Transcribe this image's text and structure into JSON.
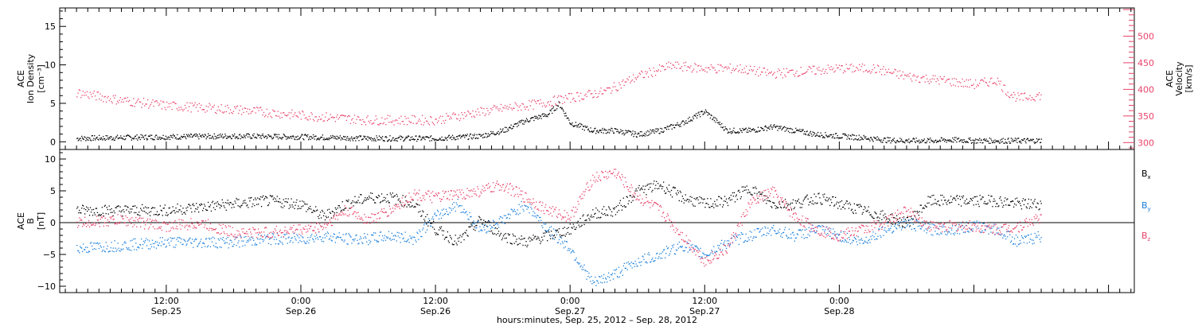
{
  "chart_data": [
    {
      "type": "scatter",
      "panel": "top",
      "left_axis": {
        "label_lines": [
          "ACE",
          "Ion Density",
          "[cm⁻³]"
        ],
        "range": [
          -1,
          17.4
        ],
        "ticks": [
          0,
          5,
          10,
          15
        ],
        "tick_labels": [
          "0",
          "5",
          "10",
          "15"
        ]
      },
      "right_axis": {
        "label_lines": [
          "ACE",
          "Velocity",
          "[km/s]"
        ],
        "range": [
          287,
          553
        ],
        "ticks": [
          300,
          350,
          400,
          450,
          500
        ],
        "tick_labels": [
          "300",
          "350",
          "400",
          "450",
          "500"
        ],
        "color": "#e8436a"
      },
      "series": [
        {
          "axis": "left",
          "color": "#000000",
          "t": [
            -8,
            0,
            6,
            12,
            18,
            24,
            28,
            30,
            32,
            34,
            35,
            36,
            38,
            40,
            42,
            44,
            46,
            48,
            50,
            52,
            54,
            56,
            58,
            60,
            62,
            64,
            66,
            68,
            70,
            72,
            74,
            76,
            78
          ],
          "v": [
            0.5,
            0.7,
            0.8,
            0.7,
            0.5,
            0.5,
            0.8,
            1.5,
            2.8,
            3.6,
            5.0,
            2.5,
            1.5,
            1.5,
            1.0,
            1.5,
            2.5,
            4.0,
            1.5,
            1.5,
            2.0,
            1.5,
            1.0,
            0.8,
            0.6,
            0.3,
            0.2,
            0.2,
            0.3,
            0.2,
            0.2,
            0.2,
            0.2
          ]
        },
        {
          "axis": "right",
          "color": "#e8436a",
          "t": [
            -8,
            -4,
            0,
            6,
            12,
            18,
            24,
            27,
            30,
            33,
            36,
            39,
            42,
            45,
            48,
            51,
            54,
            57,
            60,
            63,
            66,
            69,
            72,
            74,
            75,
            76,
            78
          ],
          "v": [
            395,
            380,
            370,
            363,
            352,
            343,
            343,
            355,
            365,
            373,
            385,
            396,
            425,
            445,
            440,
            440,
            430,
            435,
            440,
            440,
            425,
            418,
            410,
            418,
            395,
            384,
            390
          ]
        }
      ]
    },
    {
      "type": "scatter",
      "panel": "bottom",
      "left_axis": {
        "label_lines": [
          "ACE",
          "B",
          "[nT]"
        ],
        "range": [
          -11,
          11.5
        ],
        "ticks": [
          -10,
          -5,
          0,
          5,
          10
        ],
        "tick_labels": [
          "−10",
          "−5",
          "0",
          "5",
          "10"
        ]
      },
      "series": [
        {
          "name": "Bx",
          "color": "#000000",
          "t": [
            -8,
            -4,
            0,
            3,
            6,
            9,
            12,
            14,
            16,
            18,
            20,
            22,
            24,
            26,
            28,
            30,
            32,
            34,
            36,
            38,
            40,
            42,
            44,
            46,
            48,
            50,
            52,
            54,
            56,
            58,
            60,
            62,
            64,
            66,
            68,
            70,
            72,
            74,
            76,
            78
          ],
          "v": [
            2.0,
            2.0,
            2.0,
            2.5,
            3.0,
            3.5,
            3.0,
            1.0,
            3.0,
            4.0,
            4.0,
            3.0,
            -1.0,
            -3.0,
            0.5,
            -2.0,
            -3.0,
            -2.0,
            -1.0,
            1.5,
            2.0,
            5.0,
            6.0,
            4.0,
            3.0,
            3.5,
            5.5,
            3.0,
            3.0,
            4.0,
            3.0,
            2.0,
            1.0,
            0.0,
            3.5,
            3.5,
            3.5,
            3.5,
            3.0,
            3.0
          ]
        },
        {
          "name": "By",
          "color": "#1a7fdc",
          "t": [
            -8,
            -4,
            0,
            3,
            6,
            9,
            12,
            14,
            16,
            18,
            20,
            22,
            24,
            26,
            28,
            30,
            32,
            34,
            36,
            38,
            40,
            42,
            44,
            46,
            48,
            50,
            52,
            54,
            56,
            58,
            60,
            62,
            64,
            66,
            68,
            70,
            72,
            74,
            76,
            78
          ],
          "v": [
            -4.0,
            -3.5,
            -3.0,
            -3.0,
            -3.0,
            -2.5,
            -2.5,
            -2.0,
            -2.5,
            -2.5,
            -2.0,
            -2.5,
            1.0,
            3.0,
            -1.0,
            0.5,
            3.0,
            -1.0,
            -4.0,
            -9.5,
            -8.0,
            -6.0,
            -5.0,
            -3.5,
            -5.0,
            -3.0,
            -2.0,
            -1.0,
            -2.0,
            -1.0,
            -2.0,
            -3.0,
            -1.0,
            0.0,
            -1.0,
            -1.0,
            -0.5,
            -1.0,
            -3.0,
            -2.0
          ]
        },
        {
          "name": "Bz",
          "color": "#e8436a",
          "t": [
            -8,
            -4,
            0,
            3,
            6,
            9,
            12,
            14,
            16,
            18,
            20,
            22,
            24,
            26,
            28,
            30,
            32,
            34,
            36,
            38,
            40,
            42,
            44,
            46,
            48,
            50,
            52,
            54,
            56,
            58,
            60,
            62,
            64,
            66,
            68,
            70,
            72,
            74,
            76,
            78
          ],
          "v": [
            0.0,
            0.5,
            -0.5,
            0.0,
            -1.5,
            -1.5,
            -1.0,
            -0.5,
            2.0,
            0.5,
            2.0,
            4.5,
            4.0,
            4.5,
            5.0,
            6.0,
            4.0,
            2.0,
            1.0,
            7.0,
            8.0,
            4.0,
            2.0,
            -2.0,
            -6.0,
            -4.0,
            3.0,
            5.0,
            1.0,
            -1.0,
            -2.0,
            -1.0,
            0.0,
            2.0,
            -0.5,
            -0.5,
            -0.5,
            -1.0,
            -0.5,
            1.0
          ]
        }
      ],
      "legend": [
        {
          "base": "B",
          "sub": "x",
          "color": "#000000"
        },
        {
          "base": "B",
          "sub": "y",
          "color": "#1a7fdc"
        },
        {
          "base": "B",
          "sub": "z",
          "color": "#e8436a"
        }
      ]
    }
  ],
  "x_axis": {
    "ticks": [
      {
        "t": 0,
        "hm": "12:00",
        "day": "Sep.25"
      },
      {
        "t": 12,
        "hm": "0:00",
        "day": "Sep.26"
      },
      {
        "t": 24,
        "hm": "12:00",
        "day": "Sep.26"
      },
      {
        "t": 36,
        "hm": "0:00",
        "day": "Sep.27"
      },
      {
        "t": 48,
        "hm": "12:00",
        "day": "Sep.27"
      },
      {
        "t": 60,
        "hm": "0:00",
        "day": "Sep.28"
      }
    ],
    "label": "hours:minutes, Sep. 25, 2012 – Sep. 28, 2012"
  }
}
